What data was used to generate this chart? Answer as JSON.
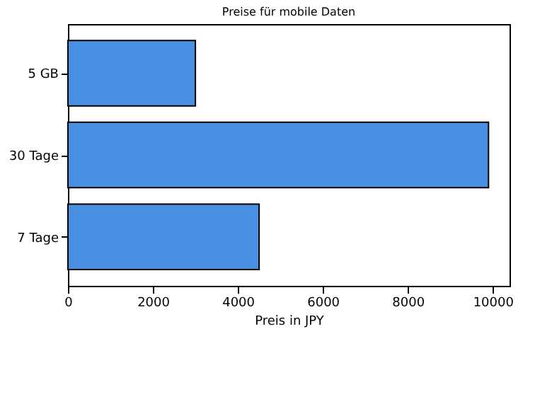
{
  "chart_data": {
    "type": "bar",
    "orientation": "horizontal",
    "title": "Preise für mobile Daten",
    "xlabel": "Preis in JPY",
    "categories": [
      "5 GB",
      "30 Tage",
      "7 Tage"
    ],
    "values": [
      3000,
      9900,
      4500
    ],
    "color": "#4a90e2",
    "xlim": [
      0,
      10395
    ],
    "xticks": [
      0,
      2000,
      4000,
      6000,
      8000,
      10000
    ],
    "grid": false
  }
}
